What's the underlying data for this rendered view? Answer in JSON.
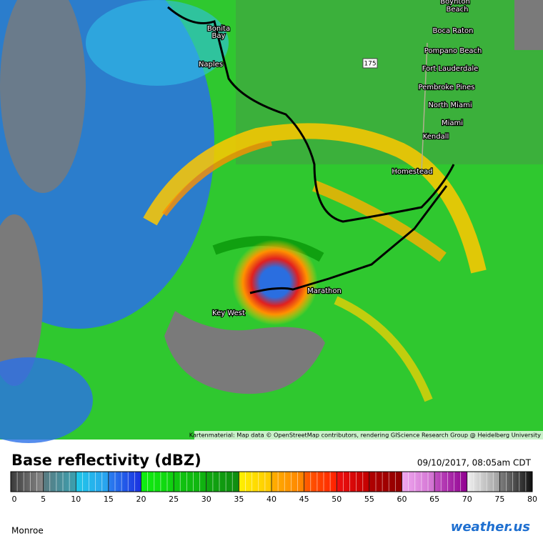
{
  "map": {
    "places": [
      "Bonita",
      "Bay",
      "Naples",
      "Boynton",
      "Beach",
      "Boca Raton",
      "Pompano Beach",
      "Fort Lauderdale",
      "Pembroke Pines",
      "North Miami",
      "Miami",
      "Kendall",
      "Homestead",
      "Marathon",
      "Key West"
    ],
    "road": "175",
    "attribution": "Kartenmaterial: Map data © OpenStreetMap contributors, rendering GIScience Research Group @ Heidelberg University"
  },
  "legend": {
    "title": "Base reflectivity (dBZ)",
    "timestamp": "09/10/2017, 08:05am CDT",
    "ticks": [
      0,
      5,
      10,
      15,
      20,
      25,
      30,
      35,
      40,
      45,
      50,
      55,
      60,
      65,
      70,
      75,
      80
    ],
    "scale": [
      {
        "from": "#3a3a3a",
        "to": "#8a8a8a"
      },
      {
        "from": "#5a7a80",
        "to": "#3aa0b0"
      },
      {
        "from": "#20c8e8",
        "to": "#2aa0f0"
      },
      {
        "from": "#2a80f0",
        "to": "#1a30e0"
      },
      {
        "from": "#10f010",
        "to": "#10d010"
      },
      {
        "from": "#10c810",
        "to": "#10b010"
      },
      {
        "from": "#10a810",
        "to": "#108c10"
      },
      {
        "from": "#fff000",
        "to": "#ffc800"
      },
      {
        "from": "#ffb000",
        "to": "#ff8000"
      },
      {
        "from": "#ff6000",
        "to": "#ff2000"
      },
      {
        "from": "#f01010",
        "to": "#c00000"
      },
      {
        "from": "#b00000",
        "to": "#900000"
      },
      {
        "from": "#f0a8f0",
        "to": "#d070d0"
      },
      {
        "from": "#c050c0",
        "to": "#900090"
      },
      {
        "from": "#f0f0f0",
        "to": "#a0a0a0"
      },
      {
        "from": "#808080",
        "to": "#101010"
      }
    ],
    "station": "Monroe",
    "brand": "weather.us"
  }
}
